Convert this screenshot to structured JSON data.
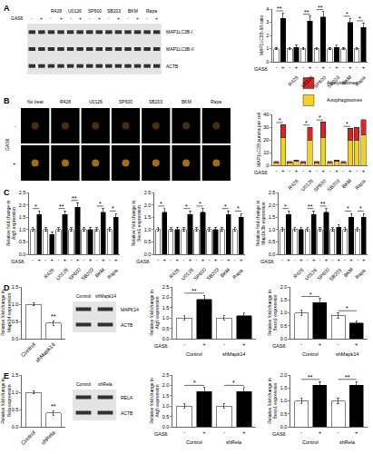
{
  "panel_labels": [
    "A",
    "B",
    "C",
    "D",
    "E"
  ],
  "blots": [
    {
      "groups": [
        null,
        "R428",
        "U0126",
        "SP600",
        "SB203",
        "BKM",
        "Rapa"
      ],
      "treatment": "GAS6",
      "lane_signs": [
        "-",
        "+",
        "-",
        "+",
        "-",
        "+",
        "-",
        "+",
        "-",
        "+",
        "-",
        "+",
        "-",
        "+"
      ],
      "rows": [
        "MAP1LC3B-I",
        "MAP1LC3B-II",
        "ACTB"
      ]
    },
    {
      "lanes": [
        "Control",
        "shMapk14"
      ],
      "rows": [
        "MAPK14",
        "ACTB"
      ]
    },
    {
      "lanes": [
        "Control",
        "shRela"
      ],
      "rows": [
        "RELA",
        "ACTB"
      ]
    }
  ],
  "micrographs": {
    "columns": [
      "No treat",
      "R428",
      "U0126",
      "SP600",
      "SB203",
      "BKM",
      "Rapa"
    ],
    "row_label": "GAS6",
    "rows": [
      "-",
      "+"
    ]
  },
  "chart_data": [
    {
      "type": "bar",
      "y_label": "MAP1LC3B-II/I ratio",
      "x_label": "GAS6",
      "categories": [
        "-",
        "+",
        "-",
        "+",
        "-",
        "+",
        "-",
        "+",
        "-",
        "+",
        "-",
        "+",
        "-",
        "+"
      ],
      "groups": [
        null,
        "R428",
        "U0126",
        "SP600",
        "SB203",
        "BKM",
        "Rapa"
      ],
      "values": [
        1.0,
        3.3,
        1.0,
        1.1,
        1.0,
        3.1,
        1.0,
        3.4,
        1.0,
        1.1,
        1.0,
        3.0,
        1.0,
        2.6
      ],
      "errors": [
        0.1,
        0.4,
        0.1,
        0.15,
        0.1,
        0.35,
        0.1,
        0.4,
        0.1,
        0.15,
        0.1,
        0.3,
        0.1,
        0.35
      ],
      "colors": [
        "#ffffff",
        "#000000",
        "#ffffff",
        "#000000",
        "#ffffff",
        "#000000",
        "#ffffff",
        "#000000",
        "#ffffff",
        "#000000",
        "#ffffff",
        "#000000",
        "#ffffff",
        "#000000"
      ],
      "significance": [
        "**",
        null,
        "**",
        "**",
        null,
        "*",
        "*"
      ],
      "ylim": [
        0,
        4
      ],
      "yticks": [
        0,
        1,
        2,
        3,
        4
      ]
    },
    {
      "type": "bar",
      "stacked": true,
      "legend": "top",
      "y_label": "MAP1LC3B puncta per cell",
      "x_label": "GAS6",
      "categories": [
        "-",
        "+",
        "-",
        "+",
        "-",
        "+",
        "-",
        "+",
        "-",
        "+",
        "-",
        "+",
        "-",
        "+"
      ],
      "groups": [
        null,
        "R428",
        "U0126",
        "SP600",
        "SB203",
        "BKM",
        "Rapa"
      ],
      "series": [
        {
          "name": "Autophagosomes",
          "color": "#f2d024",
          "values": [
            2,
            22,
            2,
            3,
            2,
            20,
            2,
            22,
            2,
            3,
            2,
            20,
            20,
            24
          ]
        },
        {
          "name": "Autolysosomes",
          "color": "#d62728",
          "values": [
            1,
            10,
            1,
            1,
            1,
            10,
            1,
            12,
            1,
            1,
            1,
            9,
            10,
            12
          ]
        }
      ],
      "significance": [
        "*",
        null,
        "*",
        "*",
        null,
        "*",
        null
      ],
      "ylim": [
        0,
        40
      ],
      "yticks": [
        0,
        10,
        20,
        30,
        40
      ]
    },
    {
      "type": "bar",
      "y_label": "Relative fold change in\nAtg5 expression",
      "x_label": "GAS6",
      "categories": [
        "-",
        "+",
        "-",
        "+",
        "-",
        "+",
        "-",
        "+",
        "-",
        "+",
        "-",
        "+",
        "-",
        "+"
      ],
      "groups": [
        null,
        "R428",
        "U0126",
        "SP600",
        "SB203",
        "BKM",
        "Rapa"
      ],
      "values": [
        1.0,
        1.6,
        1.0,
        0.8,
        1.0,
        1.6,
        1.0,
        1.9,
        1.0,
        1.0,
        1.0,
        1.7,
        1.0,
        1.5
      ],
      "errors": [
        0.08,
        0.15,
        0.08,
        0.1,
        0.08,
        0.15,
        0.08,
        0.18,
        0.08,
        0.1,
        0.08,
        0.15,
        0.08,
        0.15
      ],
      "colors": [
        "#ffffff",
        "#000000",
        "#ffffff",
        "#000000",
        "#ffffff",
        "#000000",
        "#ffffff",
        "#000000",
        "#ffffff",
        "#000000",
        "#ffffff",
        "#000000",
        "#ffffff",
        "#000000"
      ],
      "significance": [
        "*",
        null,
        "**",
        "**",
        null,
        "*",
        "*"
      ],
      "ylim": [
        0,
        2.5
      ],
      "yticks": [
        {
          "value": 0,
          "label": "0.0"
        },
        0.5,
        {
          "value": 1,
          "label": "1.0"
        },
        1.5,
        {
          "value": 2,
          "label": "2.0"
        },
        2.5
      ]
    },
    {
      "type": "bar",
      "y_label": "Relative fold change in\nBecn1 expression",
      "x_label": "GAS6",
      "categories": [
        "-",
        "+",
        "-",
        "+",
        "-",
        "+",
        "-",
        "+",
        "-",
        "+",
        "-",
        "+",
        "-",
        "+"
      ],
      "groups": [
        null,
        "R428",
        "U0126",
        "SP600",
        "SB203",
        "BKM",
        "Rapa"
      ],
      "values": [
        1.0,
        1.7,
        1.0,
        1.0,
        1.0,
        1.6,
        1.0,
        1.7,
        1.0,
        1.0,
        1.0,
        1.6,
        1.0,
        1.5
      ],
      "errors": [
        0.08,
        0.15,
        0.08,
        0.1,
        0.08,
        0.15,
        0.08,
        0.15,
        0.08,
        0.1,
        0.08,
        0.15,
        0.08,
        0.15
      ],
      "colors": [
        "#ffffff",
        "#000000",
        "#ffffff",
        "#000000",
        "#ffffff",
        "#000000",
        "#ffffff",
        "#000000",
        "#ffffff",
        "#000000",
        "#ffffff",
        "#000000",
        "#ffffff",
        "#000000"
      ],
      "significance": [
        "*",
        null,
        "*",
        "*",
        null,
        "*",
        "*"
      ],
      "ylim": [
        0,
        2.5
      ],
      "yticks": [
        {
          "value": 0,
          "label": "0.0"
        },
        0.5,
        {
          "value": 1,
          "label": "1.0"
        },
        1.5,
        {
          "value": 2,
          "label": "2.0"
        },
        2.5
      ]
    },
    {
      "type": "bar",
      "y_label": "Relative fold change in\nMap1lc3b expression",
      "x_label": "GAS6",
      "categories": [
        "-",
        "+",
        "-",
        "+",
        "-",
        "+",
        "-",
        "+",
        "-",
        "+",
        "-",
        "+",
        "-",
        "+"
      ],
      "groups": [
        null,
        "R428",
        "U0126",
        "SP600",
        "SB203",
        "BKM",
        "Rapa"
      ],
      "values": [
        1.0,
        1.6,
        1.0,
        1.0,
        1.0,
        1.6,
        1.0,
        1.7,
        1.0,
        1.1,
        1.0,
        1.5,
        1.0,
        1.5
      ],
      "errors": [
        0.08,
        0.15,
        0.08,
        0.1,
        0.08,
        0.15,
        0.08,
        0.15,
        0.08,
        0.1,
        0.08,
        0.15,
        0.08,
        0.15
      ],
      "colors": [
        "#ffffff",
        "#000000",
        "#ffffff",
        "#000000",
        "#ffffff",
        "#000000",
        "#ffffff",
        "#000000",
        "#ffffff",
        "#000000",
        "#ffffff",
        "#000000",
        "#ffffff",
        "#000000"
      ],
      "significance": [
        "*",
        null,
        "**",
        "**",
        null,
        "*",
        "*"
      ],
      "ylim": [
        0,
        2.5
      ],
      "yticks": [
        {
          "value": 0,
          "label": "0.0"
        },
        0.5,
        {
          "value": 1,
          "label": "1.0"
        },
        1.5,
        {
          "value": 2,
          "label": "2.0"
        },
        2.5
      ]
    },
    {
      "type": "bar",
      "y_label": "Relative fold change in\nMapk14 expression",
      "categories": [
        "Control",
        "shMapk14"
      ],
      "values": [
        1.0,
        0.45
      ],
      "errors": [
        0.05,
        0.06
      ],
      "colors": [
        "#ffffff",
        "#ffffff"
      ],
      "significance": [
        null,
        "**"
      ],
      "ylim": [
        0,
        1.5
      ],
      "yticks": [
        {
          "value": 0,
          "label": "0.0"
        },
        0.5,
        {
          "value": 1,
          "label": "1.0"
        },
        1.5
      ]
    },
    {
      "type": "bar",
      "y_label": "Relative fold change in\nAtg5 expression",
      "x_label": "GAS6",
      "categories": [
        "-",
        "+",
        "-",
        "+"
      ],
      "groups": [
        "Control",
        "shMapk14"
      ],
      "values": [
        1.0,
        1.9,
        1.0,
        1.1
      ],
      "errors": [
        0.1,
        0.2,
        0.1,
        0.15
      ],
      "colors": [
        "#ffffff",
        "#000000",
        "#ffffff",
        "#000000"
      ],
      "significance": [
        "**",
        null
      ],
      "ylim": [
        0,
        2.5
      ],
      "yticks": [
        {
          "value": 0,
          "label": "0.0"
        },
        0.5,
        {
          "value": 1,
          "label": "1.0"
        },
        1.5,
        {
          "value": 2,
          "label": "2.0"
        },
        2.5
      ]
    },
    {
      "type": "bar",
      "y_label": "Relative fold change in\nBecn1 expression",
      "x_label": "GAS6",
      "categories": [
        "-",
        "+",
        "-",
        "+"
      ],
      "groups": [
        "Control",
        "shMapk14"
      ],
      "values": [
        1.0,
        1.4,
        0.9,
        0.6
      ],
      "errors": [
        0.1,
        0.15,
        0.1,
        0.08
      ],
      "colors": [
        "#ffffff",
        "#000000",
        "#ffffff",
        "#000000"
      ],
      "significance": [
        "*",
        "*"
      ],
      "ylim": [
        0,
        2
      ],
      "yticks": [
        {
          "value": 0,
          "label": "0.0"
        },
        0.5,
        {
          "value": 1,
          "label": "1.0"
        },
        1.5,
        {
          "value": 2,
          "label": "2.0"
        }
      ]
    },
    {
      "type": "bar",
      "y_label": "Relative fold change in\nRela expression",
      "categories": [
        "Control",
        "shRela"
      ],
      "values": [
        1.0,
        0.4
      ],
      "errors": [
        0.05,
        0.06
      ],
      "colors": [
        "#ffffff",
        "#ffffff"
      ],
      "significance": [
        null,
        "**"
      ],
      "ylim": [
        0,
        1.5
      ],
      "yticks": [
        {
          "value": 0,
          "label": "0.0"
        },
        0.5,
        {
          "value": 1,
          "label": "1.0"
        },
        1.5
      ]
    },
    {
      "type": "bar",
      "y_label": "Relative fold change in\nAtg5 expression",
      "x_label": "GAS6",
      "categories": [
        "-",
        "+",
        "-",
        "+"
      ],
      "groups": [
        "Control",
        "shRela"
      ],
      "values": [
        1.0,
        1.7,
        1.0,
        1.7
      ],
      "errors": [
        0.1,
        0.2,
        0.1,
        0.2
      ],
      "colors": [
        "#ffffff",
        "#000000",
        "#ffffff",
        "#000000"
      ],
      "significance": [
        "*",
        "*"
      ],
      "ylim": [
        0,
        2.5
      ],
      "yticks": [
        {
          "value": 0,
          "label": "0.0"
        },
        0.5,
        {
          "value": 1,
          "label": "1.0"
        },
        1.5,
        {
          "value": 2,
          "label": "2.0"
        },
        2.5
      ]
    },
    {
      "type": "bar",
      "y_label": "Relative fold change in\nBecn1 expression",
      "x_label": "GAS6",
      "categories": [
        "-",
        "+",
        "-",
        "+"
      ],
      "groups": [
        "Control",
        "shRela"
      ],
      "values": [
        1.0,
        1.6,
        1.0,
        1.6
      ],
      "errors": [
        0.1,
        0.15,
        0.1,
        0.15
      ],
      "colors": [
        "#ffffff",
        "#000000",
        "#ffffff",
        "#000000"
      ],
      "significance": [
        "**",
        "**"
      ],
      "ylim": [
        0,
        2
      ],
      "yticks": [
        {
          "value": 0,
          "label": "0.0"
        },
        0.5,
        {
          "value": 1,
          "label": "1.0"
        },
        1.5,
        {
          "value": 2,
          "label": "2.0"
        }
      ]
    }
  ]
}
